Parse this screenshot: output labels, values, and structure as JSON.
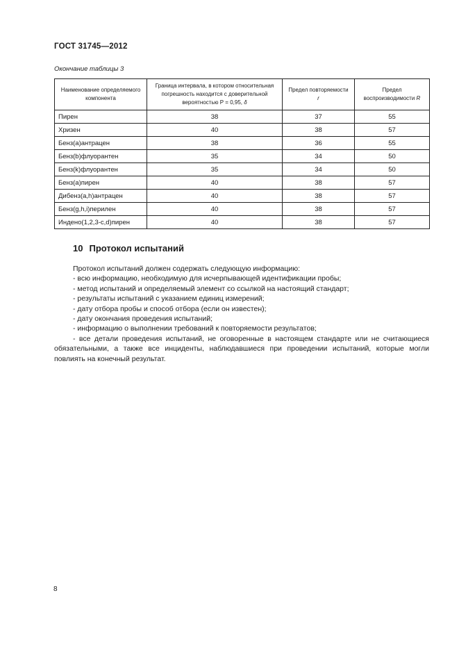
{
  "page": {
    "doc_header": "ГОСТ 31745—2012",
    "table_caption": "Окончание таблицы 3",
    "page_number": "8"
  },
  "table": {
    "columns": [
      {
        "label": "Наименование определяемого компонента",
        "symbol": "",
        "symbol_break": false
      },
      {
        "label": "Граница интервала, в котором относительная погрешность находится с доверительной вероятностью Р = 0,95,",
        "symbol": "δ",
        "symbol_break": false
      },
      {
        "label": "Предел повторяемости",
        "symbol": "r",
        "symbol_break": true
      },
      {
        "label": "Предел воспроизводимости",
        "symbol": "R",
        "symbol_break": false
      }
    ],
    "rows": [
      [
        "Пирен",
        "38",
        "37",
        "55"
      ],
      [
        "Хризен",
        "40",
        "38",
        "57"
      ],
      [
        "Бенз(а)антрацен",
        "38",
        "36",
        "55"
      ],
      [
        "Бенз(b)флуорантен",
        "35",
        "34",
        "50"
      ],
      [
        "Бенз(k)флуорантен",
        "35",
        "34",
        "50"
      ],
      [
        "Бенз(а)пирен",
        "40",
        "38",
        "57"
      ],
      [
        "Дибенз(а,h)антрацен",
        "40",
        "38",
        "57"
      ],
      [
        "Бенз(g,h,i)перилен",
        "40",
        "38",
        "57"
      ],
      [
        "Индено(1,2,3-c,d)пирен",
        "40",
        "38",
        "57"
      ]
    ]
  },
  "section": {
    "number": "10",
    "title": "Протокол испытаний",
    "intro": "Протокол испытаний должен содержать следующую информацию:",
    "bullets": [
      "- всю информацию, необходимую для исчерпывающей идентификации пробы;",
      "- метод испытаний и определяемый элемент со ссылкой на настоящий стандарт;",
      "- результаты испытаний с указанием единиц измерений;",
      "- дату отбора пробы и способ отбора (если он известен);",
      "- дату окончания проведения испытаний;",
      "- информацию о выполнении требований к повторяемости результатов;",
      "- все детали проведения испытаний, не оговоренные в настоящем стандарте или не считающиеся обязательными, а также все инциденты, наблюдавшиеся при проведении испытаний, которые могли повлиять на конечный результат."
    ]
  }
}
